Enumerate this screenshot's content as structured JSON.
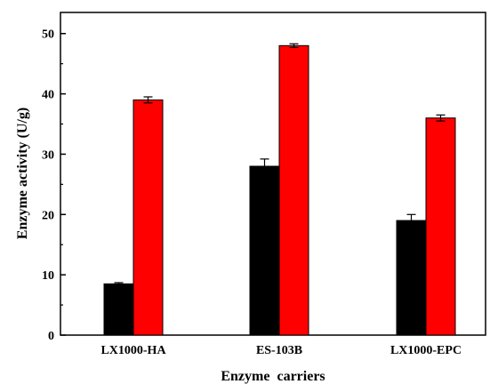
{
  "chart_data": {
    "type": "bar",
    "title": "",
    "xlabel": "Enzyme carriers",
    "ylabel": "Enzyme activity (U/g)",
    "ylim": [
      0,
      53.5
    ],
    "yticks": [
      0,
      10,
      20,
      30,
      40,
      50
    ],
    "categories": [
      "LX1000-HA",
      "ES-103B",
      "LX1000-EPC"
    ],
    "series": [
      {
        "color": "#000000",
        "values": [
          8.5,
          28.0,
          19.0
        ],
        "errors": [
          0.2,
          1.2,
          1.0
        ]
      },
      {
        "color": "#ff0000",
        "values": [
          39.0,
          48.0,
          36.0
        ],
        "errors": [
          0.5,
          0.3,
          0.5
        ]
      }
    ],
    "legend": "none",
    "grid": false
  }
}
